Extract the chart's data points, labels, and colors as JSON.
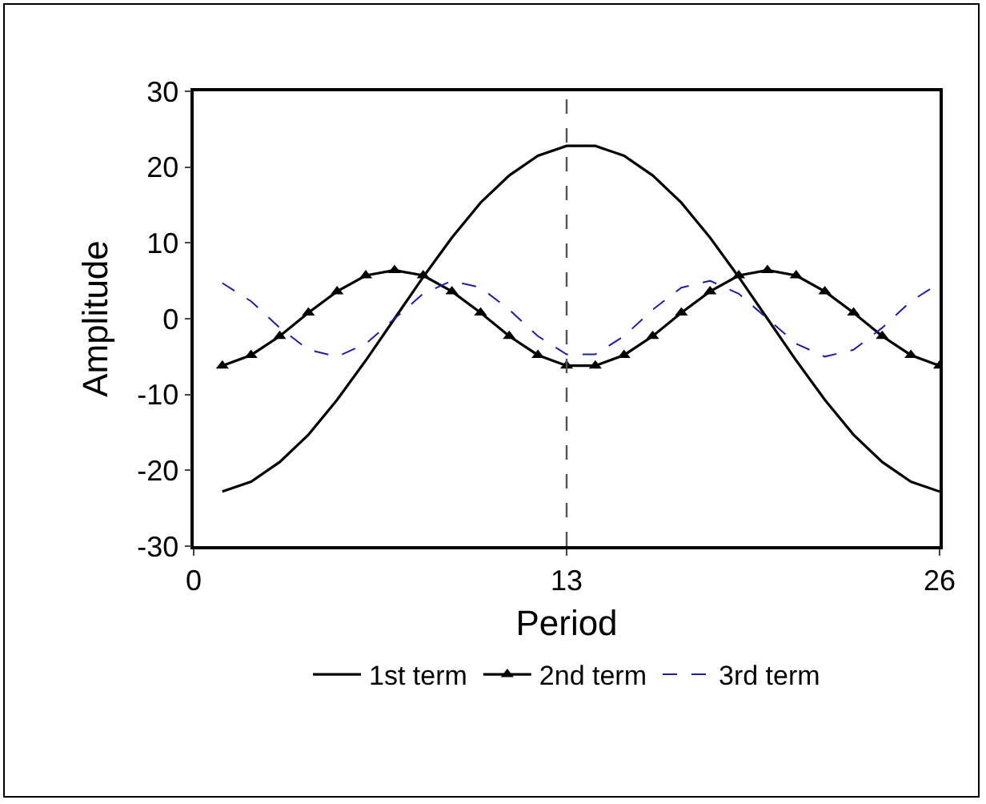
{
  "chart_data": {
    "type": "line",
    "xlabel": "Period",
    "ylabel": "Amplitude",
    "x": [
      1,
      2,
      3,
      4,
      5,
      6,
      7,
      8,
      9,
      10,
      11,
      12,
      13,
      14,
      15,
      16,
      17,
      18,
      19,
      20,
      21,
      22,
      23,
      24,
      25,
      26
    ],
    "series": [
      {
        "name": "1st term",
        "color": "#000000",
        "marker": "none",
        "line_style": "solid",
        "values": [
          -22.8,
          -21.5,
          -18.9,
          -15.3,
          -10.7,
          -5.5,
          0,
          5.5,
          10.7,
          15.3,
          18.9,
          21.5,
          22.8,
          22.8,
          21.5,
          18.9,
          15.3,
          10.7,
          5.5,
          0,
          -5.5,
          -10.7,
          -15.3,
          -18.9,
          -21.5,
          -22.8
        ]
      },
      {
        "name": "2nd term",
        "color": "#000000",
        "marker": "triangle",
        "line_style": "solid",
        "values": [
          -6.2,
          -4.8,
          -2.3,
          0.8,
          3.6,
          5.7,
          6.4,
          5.7,
          3.6,
          0.8,
          -2.3,
          -4.8,
          -6.2,
          -6.2,
          -4.8,
          -2.3,
          0.8,
          3.6,
          5.7,
          6.4,
          5.7,
          3.6,
          0.8,
          -2.3,
          -4.8,
          -6.2
        ]
      },
      {
        "name": "3rd term",
        "color": "#1f1f99",
        "marker": "none",
        "line_style": "dashed",
        "values": [
          4.7,
          2.3,
          -1.2,
          -4.1,
          -5.0,
          -3.3,
          0,
          3.3,
          5.0,
          4.1,
          1.2,
          -2.3,
          -4.7,
          -4.7,
          -2.3,
          1.2,
          4.1,
          5.0,
          3.3,
          0,
          -3.3,
          -5.0,
          -4.1,
          -1.2,
          2.3,
          4.7
        ]
      }
    ],
    "xlim": [
      0,
      26
    ],
    "xticks": [
      0,
      13,
      26
    ],
    "ylim": [
      -30,
      30
    ],
    "yticks": [
      -30,
      -20,
      -10,
      0,
      10,
      20,
      30
    ],
    "ref_lines": [
      {
        "axis": "x",
        "value": 13,
        "color": "#555555",
        "line_style": "dashed"
      }
    ],
    "grid": false,
    "legend": "bottom"
  }
}
